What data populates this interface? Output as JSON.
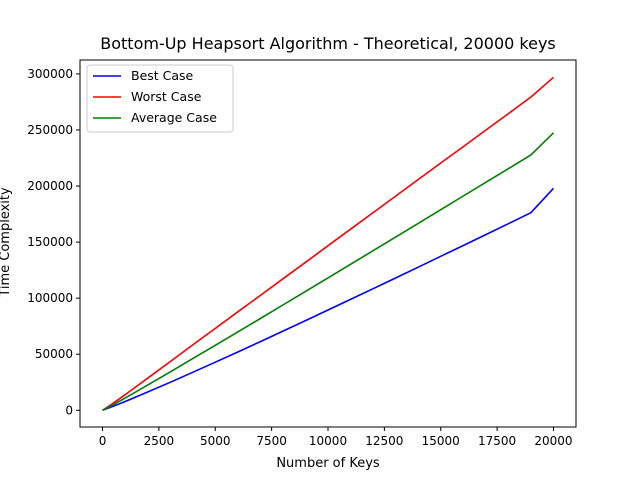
{
  "chart_data": {
    "type": "line",
    "title": "Bottom-Up Heapsort Algorithm - Theoretical, 20000 keys",
    "xlabel": "Number of Keys",
    "ylabel": "Time Complexity",
    "xlim": [
      -1000,
      21000
    ],
    "ylim": [
      -14900,
      312400
    ],
    "xticks": [
      0,
      2500,
      5000,
      7500,
      10000,
      12500,
      15000,
      17500,
      20000
    ],
    "yticks": [
      0,
      50000,
      100000,
      150000,
      200000,
      250000,
      300000
    ],
    "xtick_labels": [
      "0",
      "2500",
      "5000",
      "7500",
      "10000",
      "12500",
      "15000",
      "17500",
      "20000"
    ],
    "ytick_labels": [
      "0",
      "50000",
      "100000",
      "150000",
      "200000",
      "250000",
      "300000"
    ],
    "grid": false,
    "legend_position": "upper left",
    "series": [
      {
        "name": "Best Case",
        "color": "#0000ff",
        "x": [
          1,
          500,
          1000,
          2000,
          3000,
          4000,
          5000,
          6000,
          7000,
          8000,
          9000,
          10000,
          11000,
          12000,
          13000,
          14000,
          15000,
          16000,
          17000,
          18000,
          19000,
          20000
        ],
        "y": [
          0,
          3800,
          7800,
          16300,
          25000,
          33900,
          42900,
          52000,
          61300,
          70600,
          80000,
          89400,
          98900,
          108400,
          118000,
          127600,
          137300,
          147000,
          156700,
          166400,
          176200,
          198000
        ]
      },
      {
        "name": "Worst Case",
        "color": "#ff0000",
        "x": [
          1,
          500,
          1000,
          2000,
          3000,
          4000,
          5000,
          6000,
          7000,
          8000,
          9000,
          10000,
          11000,
          12000,
          13000,
          14000,
          15000,
          16000,
          17000,
          18000,
          19000,
          20000
        ],
        "y": [
          0,
          6700,
          13900,
          28600,
          43400,
          58300,
          73000,
          87800,
          102500,
          117300,
          132000,
          146800,
          161500,
          176300,
          191000,
          205800,
          220500,
          235200,
          249900,
          264600,
          279400,
          297000
        ]
      },
      {
        "name": "Average Case",
        "color": "#008000",
        "x": [
          1,
          500,
          1000,
          2000,
          3000,
          4000,
          5000,
          6000,
          7000,
          8000,
          9000,
          10000,
          11000,
          12000,
          13000,
          14000,
          15000,
          16000,
          17000,
          18000,
          19000,
          20000
        ],
        "y": [
          0,
          5300,
          10900,
          22500,
          34200,
          46100,
          58000,
          69900,
          81900,
          93900,
          106000,
          118100,
          130200,
          142300,
          154500,
          166700,
          178900,
          191100,
          203300,
          215500,
          227800,
          247500
        ]
      }
    ]
  }
}
